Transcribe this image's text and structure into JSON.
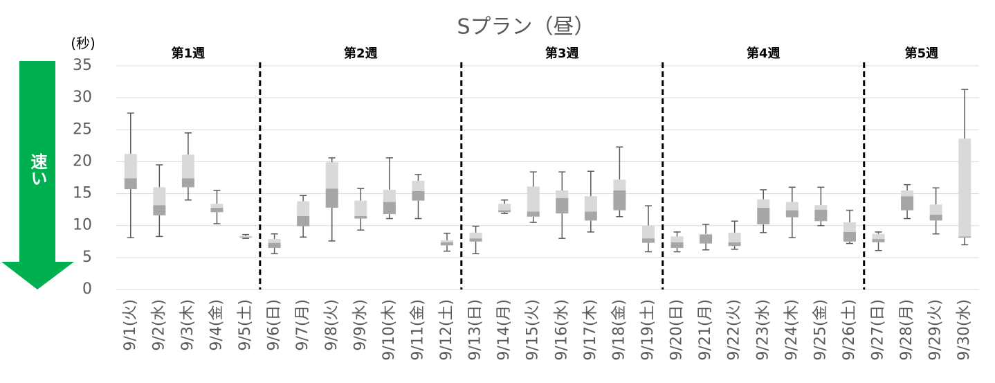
{
  "chart_data": {
    "type": "box",
    "title": "Sプラン（昼）",
    "y_unit": "(秒)",
    "annotation": "速い",
    "weeks": [
      "第1週",
      "第2週",
      "第3週",
      "第4週",
      "第5週"
    ],
    "categories": [
      "9/1(火)",
      "9/2(水)",
      "9/3(木)",
      "9/4(金)",
      "9/5(土)",
      "9/6(日)",
      "9/7(月)",
      "9/8(火)",
      "9/9(水)",
      "9/10(木)",
      "9/11(金)",
      "9/12(土)",
      "9/13(日)",
      "9/14(月)",
      "9/15(火)",
      "9/16(水)",
      "9/17(木)",
      "9/18(金)",
      "9/19(土)",
      "9/20(日)",
      "9/21(月)",
      "9/22(火)",
      "9/23(水)",
      "9/24(木)",
      "9/25(金)",
      "9/26(土)",
      "9/27(日)",
      "9/28(月)",
      "9/29(火)",
      "9/30(水)"
    ],
    "boxes": [
      {
        "min": 8.1,
        "q1": 15.7,
        "median": 17.4,
        "q3": 21.2,
        "max": 27.6
      },
      {
        "min": 8.3,
        "q1": 11.6,
        "median": 13.2,
        "q3": 16.0,
        "max": 19.5
      },
      {
        "min": 14.0,
        "q1": 16.0,
        "median": 17.4,
        "q3": 21.1,
        "max": 24.5
      },
      {
        "min": 10.3,
        "q1": 12.1,
        "median": 12.8,
        "q3": 13.4,
        "max": 15.5
      },
      {
        "min": 8.0,
        "q1": 8.1,
        "median": 8.2,
        "q3": 8.4,
        "max": 8.6
      },
      {
        "min": 5.6,
        "q1": 6.5,
        "median": 7.3,
        "q3": 7.9,
        "max": 8.7
      },
      {
        "min": 8.2,
        "q1": 9.9,
        "median": 11.5,
        "q3": 13.8,
        "max": 14.7
      },
      {
        "min": 7.6,
        "q1": 12.8,
        "median": 15.8,
        "q3": 19.9,
        "max": 20.6
      },
      {
        "min": 9.3,
        "q1": 11.1,
        "median": 11.5,
        "q3": 13.9,
        "max": 15.8
      },
      {
        "min": 11.1,
        "q1": 11.8,
        "median": 13.7,
        "q3": 15.6,
        "max": 20.6
      },
      {
        "min": 11.1,
        "q1": 13.9,
        "median": 15.4,
        "q3": 17.0,
        "max": 18.0
      },
      {
        "min": 6.0,
        "q1": 6.9,
        "median": 7.4,
        "q3": 7.7,
        "max": 8.8
      },
      {
        "min": 5.6,
        "q1": 7.5,
        "median": 8.0,
        "q3": 8.9,
        "max": 9.9
      },
      {
        "min": 11.9,
        "q1": 12.1,
        "median": 12.4,
        "q3": 13.4,
        "max": 14.0
      },
      {
        "min": 10.5,
        "q1": 11.4,
        "median": 12.2,
        "q3": 16.1,
        "max": 18.4
      },
      {
        "min": 8.0,
        "q1": 11.9,
        "median": 14.3,
        "q3": 15.5,
        "max": 18.4
      },
      {
        "min": 9.0,
        "q1": 10.8,
        "median": 12.2,
        "q3": 14.6,
        "max": 18.5
      },
      {
        "min": 11.4,
        "q1": 12.4,
        "median": 15.5,
        "q3": 17.2,
        "max": 22.3
      },
      {
        "min": 5.9,
        "q1": 7.3,
        "median": 8.0,
        "q3": 10.0,
        "max": 13.1
      },
      {
        "min": 5.9,
        "q1": 6.5,
        "median": 7.4,
        "q3": 8.3,
        "max": 9.0
      },
      {
        "min": 6.2,
        "q1": 7.2,
        "median": 8.6,
        "q3": 8.7,
        "max": 10.2
      },
      {
        "min": 6.3,
        "q1": 6.8,
        "median": 7.4,
        "q3": 8.9,
        "max": 10.7
      },
      {
        "min": 8.9,
        "q1": 10.2,
        "median": 12.8,
        "q3": 14.1,
        "max": 15.6
      },
      {
        "min": 8.1,
        "q1": 11.3,
        "median": 12.4,
        "q3": 13.7,
        "max": 16.0
      },
      {
        "min": 10.0,
        "q1": 10.7,
        "median": 12.5,
        "q3": 13.2,
        "max": 16.0
      },
      {
        "min": 7.2,
        "q1": 7.5,
        "median": 9.0,
        "q3": 10.5,
        "max": 12.4
      },
      {
        "min": 6.1,
        "q1": 7.4,
        "median": 7.9,
        "q3": 8.7,
        "max": 9.0
      },
      {
        "min": 11.1,
        "q1": 12.4,
        "median": 14.6,
        "q3": 15.5,
        "max": 16.4
      },
      {
        "min": 8.7,
        "q1": 10.8,
        "median": 11.7,
        "q3": 13.3,
        "max": 15.9
      },
      {
        "min": 7.0,
        "q1": 8.1,
        "median": 8.3,
        "q3": 23.6,
        "max": 31.3
      }
    ],
    "lower_color": "#a6a6a6",
    "upper_color": "#d9d9d9",
    "whisker_color": "#595959",
    "ylim": [
      0,
      35
    ],
    "yticks": [
      0,
      5,
      10,
      15,
      20,
      25,
      30,
      35
    ],
    "grid": true
  }
}
